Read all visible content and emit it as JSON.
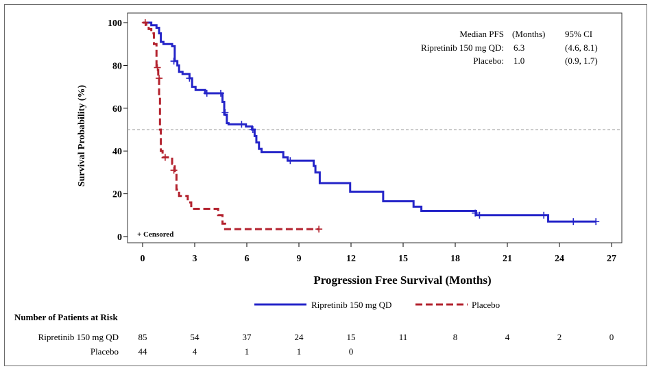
{
  "chart_data": {
    "type": "line",
    "subtype": "kaplan-meier",
    "title": "",
    "xlabel": "Progression Free Survival (Months)",
    "ylabel": "Survival Probability (%)",
    "xlim": [
      0,
      27
    ],
    "ylim": [
      0,
      100
    ],
    "xticks": [
      0,
      3,
      6,
      9,
      12,
      15,
      18,
      21,
      24,
      27
    ],
    "yticks": [
      0,
      20,
      40,
      60,
      80,
      100
    ],
    "reference_line_y": 50,
    "censored_note": "+ Censored",
    "legend_position": "bottom",
    "stats_table": {
      "headers": [
        "Median PFS",
        "(Months)",
        "95% CI"
      ],
      "rows": [
        {
          "label": "Ripretinib 150 mg QD:",
          "median": "6.3",
          "ci": "(4.6, 8.1)"
        },
        {
          "label": "Placebo:",
          "median": "1.0",
          "ci": "(0.9, 1.7)"
        }
      ]
    },
    "series": [
      {
        "name": "Ripretinib 150 mg QD",
        "color": "#2424c8",
        "dash": "solid",
        "steps": [
          [
            0,
            100
          ],
          [
            0.5,
            98.8
          ],
          [
            0.8,
            97.6
          ],
          [
            0.95,
            95
          ],
          [
            1.05,
            91
          ],
          [
            1.2,
            90
          ],
          [
            1.7,
            89
          ],
          [
            1.85,
            82
          ],
          [
            2,
            80
          ],
          [
            2.1,
            77
          ],
          [
            2.3,
            76
          ],
          [
            2.7,
            74
          ],
          [
            2.85,
            70
          ],
          [
            3.05,
            68.5
          ],
          [
            3.6,
            67
          ],
          [
            4.6,
            63
          ],
          [
            4.7,
            57
          ],
          [
            4.85,
            53
          ],
          [
            4.95,
            52.5
          ],
          [
            5.95,
            51.5
          ],
          [
            6.3,
            50
          ],
          [
            6.45,
            47
          ],
          [
            6.55,
            44
          ],
          [
            6.7,
            41
          ],
          [
            6.85,
            39.5
          ],
          [
            8.1,
            37
          ],
          [
            8.35,
            35.5
          ],
          [
            9.85,
            33
          ],
          [
            9.95,
            30
          ],
          [
            10.2,
            25
          ],
          [
            11.95,
            21
          ],
          [
            13.85,
            16.5
          ],
          [
            15.6,
            14
          ],
          [
            16.05,
            12
          ],
          [
            19.2,
            10
          ],
          [
            23.35,
            7
          ]
        ],
        "end_x": 26.1,
        "censored": [
          [
            1.8,
            82
          ],
          [
            2.7,
            74
          ],
          [
            3.7,
            67
          ],
          [
            4.5,
            67
          ],
          [
            4.75,
            58
          ],
          [
            5.7,
            52.5
          ],
          [
            6.35,
            50
          ],
          [
            8.5,
            35.5
          ],
          [
            19.15,
            11
          ],
          [
            19.4,
            10
          ],
          [
            23.1,
            10
          ],
          [
            24.8,
            7
          ],
          [
            26.1,
            7
          ]
        ]
      },
      {
        "name": "Placebo",
        "color": "#b3222e",
        "dash": "dashed",
        "steps": [
          [
            0,
            100
          ],
          [
            0.2,
            99
          ],
          [
            0.35,
            97
          ],
          [
            0.5,
            95
          ],
          [
            0.65,
            90
          ],
          [
            0.8,
            79
          ],
          [
            0.9,
            74
          ],
          [
            0.95,
            65
          ],
          [
            1.0,
            50
          ],
          [
            1.05,
            40
          ],
          [
            1.15,
            37
          ],
          [
            1.7,
            34
          ],
          [
            1.85,
            30
          ],
          [
            1.95,
            22
          ],
          [
            2.1,
            19
          ],
          [
            2.6,
            16
          ],
          [
            2.8,
            13
          ],
          [
            4.35,
            10
          ],
          [
            4.6,
            6
          ],
          [
            4.75,
            3.5
          ]
        ],
        "end_x": 10.15,
        "censored": [
          [
            0.15,
            100
          ],
          [
            0.85,
            79
          ],
          [
            0.95,
            74
          ],
          [
            1.3,
            37
          ],
          [
            1.8,
            31
          ],
          [
            10.15,
            3.5
          ]
        ]
      }
    ],
    "at_risk": {
      "title": "Number of Patients at Risk",
      "times": [
        0,
        3,
        6,
        9,
        12,
        15,
        18,
        21,
        24,
        27
      ],
      "rows": [
        {
          "label": "Ripretinib 150 mg QD",
          "counts": [
            "85",
            "54",
            "37",
            "24",
            "15",
            "11",
            "8",
            "4",
            "2",
            "0"
          ]
        },
        {
          "label": "Placebo",
          "counts": [
            "44",
            "4",
            "1",
            "1",
            "0"
          ]
        }
      ]
    }
  }
}
